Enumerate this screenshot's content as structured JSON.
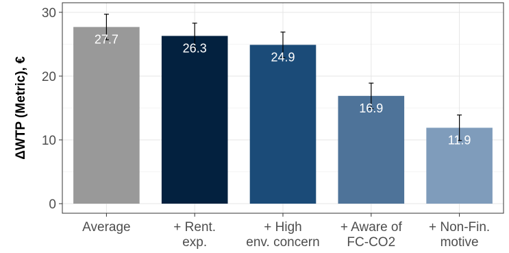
{
  "chart_data": {
    "type": "bar",
    "categories": [
      [
        "Average"
      ],
      [
        "+ Rent.",
        "exp."
      ],
      [
        "+ High",
        "env. concern"
      ],
      [
        "+ Aware of",
        "FC-CO2"
      ],
      [
        "+ Non-Fin.",
        "motive"
      ]
    ],
    "values": [
      27.7,
      26.3,
      24.9,
      16.9,
      11.9
    ],
    "error_low": [
      25.7,
      24.3,
      22.9,
      14.9,
      9.9
    ],
    "error_high": [
      29.7,
      28.3,
      26.9,
      18.9,
      13.9
    ],
    "data_labels": [
      "27.7",
      "26.3",
      "24.9",
      "16.9",
      "11.9"
    ],
    "bar_colors": [
      "#999999",
      "#03213f",
      "#1b4b78",
      "#4e7399",
      "#7f9cbb"
    ],
    "ylabel": "ΔWTP (Metric), €",
    "xlabel": "",
    "title": "",
    "ylim": [
      -1.5,
      31.5
    ],
    "yticks": [
      0,
      10,
      20,
      30
    ],
    "grid": true,
    "legend": "none",
    "error_bars": true
  }
}
